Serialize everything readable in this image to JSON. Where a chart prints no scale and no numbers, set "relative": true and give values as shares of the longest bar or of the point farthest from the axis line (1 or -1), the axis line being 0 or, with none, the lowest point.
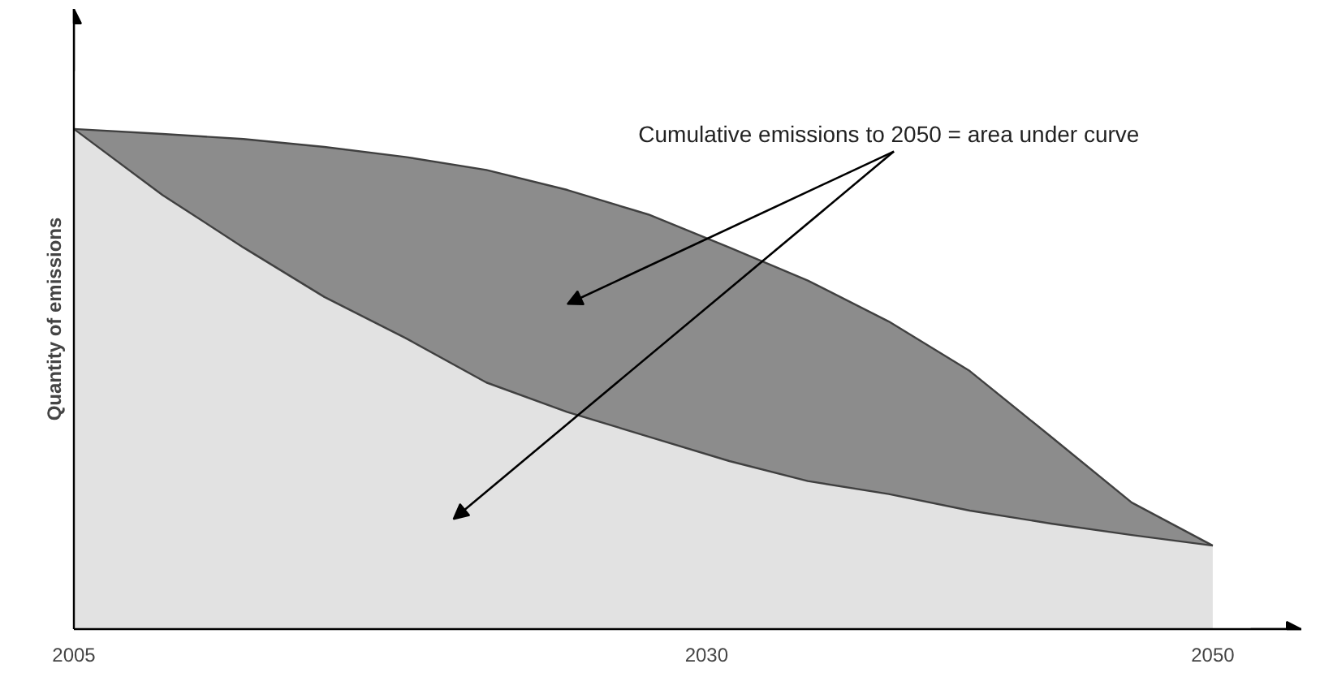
{
  "chart_data": {
    "type": "area",
    "relative": true,
    "stacked": true,
    "ylabel": "Quantity of emissions",
    "x": [
      2005,
      2008.5,
      2011.7,
      2014.9,
      2018.1,
      2021.3,
      2024.5,
      2027.7,
      2030.9,
      2034,
      2037.2,
      2040.4,
      2043.6,
      2046.8,
      2050
    ],
    "series": [
      {
        "color": "#e2e2e2",
        "values": [
          1,
          0.868,
          0.763,
          0.664,
          0.582,
          0.493,
          0.434,
          0.385,
          0.336,
          0.296,
          0.27,
          0.237,
          0.211,
          0.188,
          0.167
        ]
      },
      {
        "color": "#8c8c8c",
        "values": [
          0,
          0.122,
          0.217,
          0.3,
          0.362,
          0.425,
          0.444,
          0.444,
          0.427,
          0.401,
          0.345,
          0.279,
          0.174,
          0.065,
          0
        ]
      }
    ],
    "xlim": [
      2005,
      2053.5
    ],
    "xticks": [
      2005,
      2030,
      2050
    ],
    "tick_labels": "x",
    "grid": false,
    "annotations": [
      "Cumulative emissions to 2050 = area under curve"
    ]
  }
}
